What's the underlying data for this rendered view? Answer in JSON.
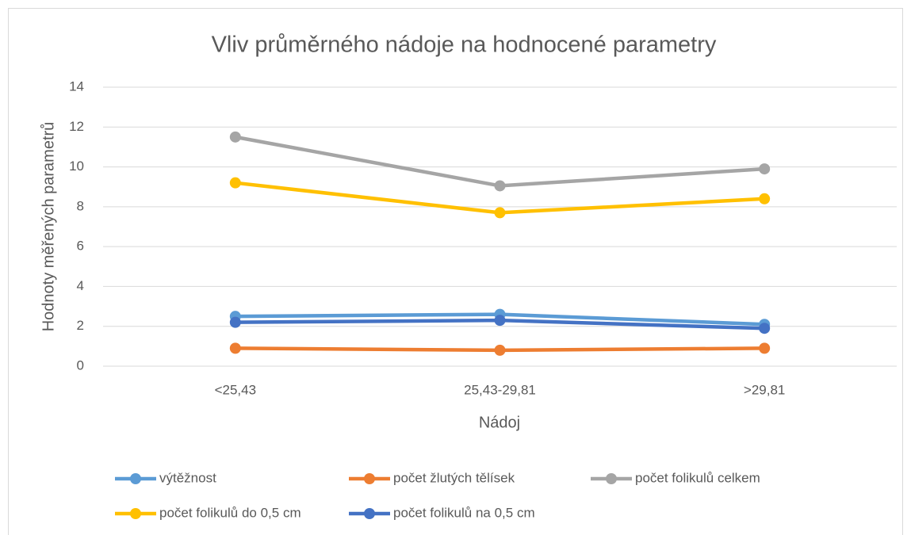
{
  "chart_data": {
    "type": "line",
    "title": "Vliv průměrného nádoje na hodnocené parametry",
    "x_label": "Nádoj",
    "y_label": "Hodnoty měřených parametrů",
    "categories": [
      "<25,43",
      "25,43-29,81",
      ">29,81"
    ],
    "series": [
      {
        "name": "výtěžnost",
        "color": "#5b9bd5",
        "values": [
          2.5,
          2.6,
          2.1
        ]
      },
      {
        "name": "počet žlutých tělísek",
        "color": "#ed7d31",
        "values": [
          0.9,
          0.8,
          0.9
        ]
      },
      {
        "name": "počet folikulů celkem",
        "color": "#a5a5a5",
        "values": [
          11.5,
          9.05,
          9.9
        ]
      },
      {
        "name": "počet folikulů do 0,5 cm",
        "color": "#ffc000",
        "values": [
          9.2,
          7.7,
          8.4
        ]
      },
      {
        "name": "počet folikulů na 0,5 cm",
        "color": "#4472c4",
        "values": [
          2.2,
          2.3,
          1.9
        ]
      }
    ],
    "ylim": [
      0,
      14
    ],
    "yticks": [
      0,
      2,
      4,
      6,
      8,
      10,
      12,
      14
    ],
    "grid": true,
    "legend": "bottom"
  }
}
